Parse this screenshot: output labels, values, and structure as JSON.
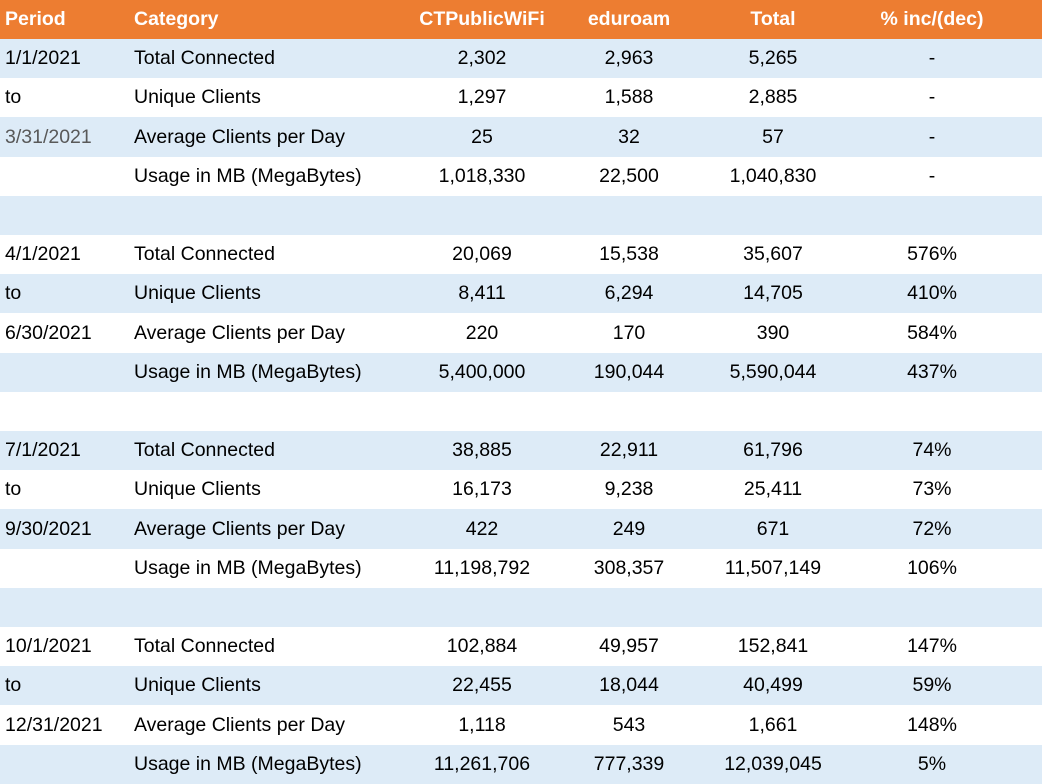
{
  "header": {
    "period": "Period",
    "category": "Category",
    "ctpublicwifi": "CTPublicWiFi",
    "eduroam": "eduroam",
    "total": "Total",
    "pct": "% inc/(dec)"
  },
  "rows": [
    {
      "period": "1/1/2021",
      "category": "Total Connected",
      "ctpublicwifi": "2,302",
      "eduroam": "2,963",
      "total": "5,265",
      "pct": "-"
    },
    {
      "period": "to",
      "category": "Unique Clients",
      "ctpublicwifi": "1,297",
      "eduroam": "1,588",
      "total": "2,885",
      "pct": "-"
    },
    {
      "period": "3/31/2021",
      "category": "Average Clients per Day",
      "ctpublicwifi": "25",
      "eduroam": "32",
      "total": "57",
      "pct": "-"
    },
    {
      "period": "",
      "category": "Usage in MB (MegaBytes)",
      "ctpublicwifi": "1,018,330",
      "eduroam": "22,500",
      "total": "1,040,830",
      "pct": "-"
    },
    {
      "period": "",
      "category": "",
      "ctpublicwifi": "",
      "eduroam": "",
      "total": "",
      "pct": ""
    },
    {
      "period": "4/1/2021",
      "category": "Total Connected",
      "ctpublicwifi": "20,069",
      "eduroam": "15,538",
      "total": "35,607",
      "pct": "576%"
    },
    {
      "period": "to",
      "category": "Unique Clients",
      "ctpublicwifi": "8,411",
      "eduroam": "6,294",
      "total": "14,705",
      "pct": "410%"
    },
    {
      "period": "6/30/2021",
      "category": "Average Clients per Day",
      "ctpublicwifi": "220",
      "eduroam": "170",
      "total": "390",
      "pct": "584%"
    },
    {
      "period": "",
      "category": "Usage in MB (MegaBytes)",
      "ctpublicwifi": "5,400,000",
      "eduroam": "190,044",
      "total": "5,590,044",
      "pct": "437%"
    },
    {
      "period": "",
      "category": "",
      "ctpublicwifi": "",
      "eduroam": "",
      "total": "",
      "pct": ""
    },
    {
      "period": "7/1/2021",
      "category": "Total Connected",
      "ctpublicwifi": "38,885",
      "eduroam": "22,911",
      "total": "61,796",
      "pct": "74%"
    },
    {
      "period": "to",
      "category": "Unique Clients",
      "ctpublicwifi": "16,173",
      "eduroam": "9,238",
      "total": "25,411",
      "pct": "73%"
    },
    {
      "period": "9/30/2021",
      "category": "Average Clients per Day",
      "ctpublicwifi": "422",
      "eduroam": "249",
      "total": "671",
      "pct": "72%"
    },
    {
      "period": "",
      "category": "Usage in MB (MegaBytes)",
      "ctpublicwifi": "11,198,792",
      "eduroam": "308,357",
      "total": "11,507,149",
      "pct": "106%"
    },
    {
      "period": "",
      "category": "",
      "ctpublicwifi": "",
      "eduroam": "",
      "total": "",
      "pct": ""
    },
    {
      "period": "10/1/2021",
      "category": "Total Connected",
      "ctpublicwifi": "102,884",
      "eduroam": "49,957",
      "total": "152,841",
      "pct": "147%"
    },
    {
      "period": "to",
      "category": "Unique Clients",
      "ctpublicwifi": "22,455",
      "eduroam": "18,044",
      "total": "40,499",
      "pct": "59%"
    },
    {
      "period": "12/31/2021",
      "category": "Average Clients per Day",
      "ctpublicwifi": "1,118",
      "eduroam": "543",
      "total": "1,661",
      "pct": "148%"
    },
    {
      "period": "",
      "category": "Usage in MB (MegaBytes)",
      "ctpublicwifi": "11,261,706",
      "eduroam": "777,339",
      "total": "12,039,045",
      "pct": "5%"
    }
  ],
  "colors": {
    "header_background": "#ED7D31",
    "band_background": "#DDEBF7",
    "plain_background": "#FFFFFF"
  }
}
